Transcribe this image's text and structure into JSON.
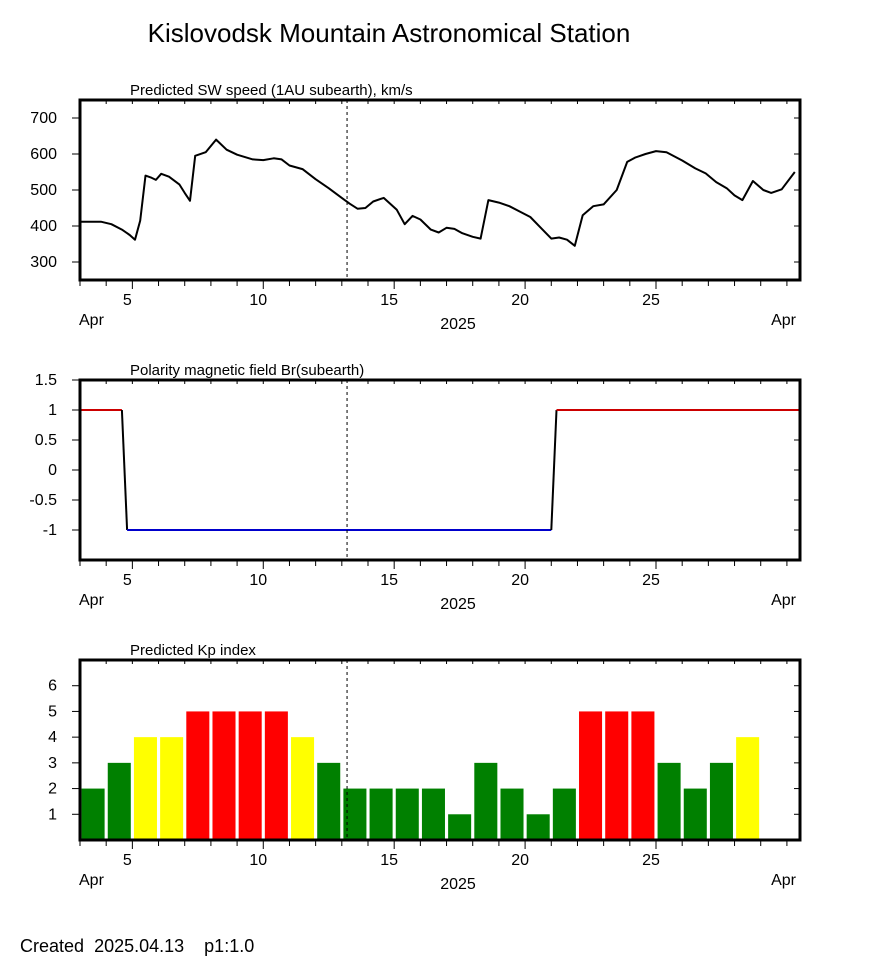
{
  "page_title": "Kislovodsk Mountain Astronomical Station",
  "footer": {
    "created_label": "Created",
    "created_date": "2025.04.13",
    "page_label": "p1:1.0"
  },
  "x_axis": {
    "month_label": "Apr",
    "year_label": "2025",
    "start_day": 3,
    "end_day": 30.5,
    "tick_days": [
      5,
      10,
      15,
      20,
      25
    ],
    "current_day": 13.2
  },
  "chart_data": [
    {
      "id": "sw",
      "type": "line",
      "title": "Predicted SW speed (1AU subearth), km/s",
      "ylim": [
        250,
        750
      ],
      "yticks": [
        300,
        400,
        500,
        600,
        700
      ],
      "grid": false,
      "series": [
        {
          "color": "#000000",
          "x": [
            3,
            3.8,
            4.2,
            4.6,
            4.9,
            5.1,
            5.3,
            5.5,
            5.7,
            5.9,
            6.1,
            6.4,
            6.8,
            7.0,
            7.2,
            7.4,
            7.8,
            8.2,
            8.6,
            9.0,
            9.6,
            10.0,
            10.4,
            10.7,
            11.0,
            11.5,
            12.0,
            12.5,
            13.0,
            13.3,
            13.6,
            13.9,
            14.2,
            14.6,
            15.1,
            15.4,
            15.7,
            16.0,
            16.4,
            16.7,
            17.0,
            17.3,
            17.6,
            18.0,
            18.3,
            18.6,
            19.0,
            19.4,
            19.8,
            20.2,
            20.6,
            21.0,
            21.3,
            21.6,
            21.9,
            22.2,
            22.6,
            23.0,
            23.5,
            23.9,
            24.2,
            24.6,
            25.0,
            25.4,
            26.0,
            26.5,
            26.9,
            27.3,
            27.7,
            28.0,
            28.3,
            28.7,
            29.1,
            29.4,
            29.8,
            30.3
          ],
          "y": [
            412,
            412,
            405,
            390,
            375,
            362,
            415,
            540,
            535,
            528,
            545,
            537,
            515,
            492,
            470,
            595,
            605,
            640,
            612,
            598,
            585,
            583,
            588,
            585,
            568,
            558,
            530,
            505,
            478,
            462,
            448,
            450,
            468,
            478,
            445,
            405,
            428,
            418,
            390,
            382,
            395,
            392,
            380,
            370,
            365,
            472,
            465,
            455,
            440,
            425,
            395,
            365,
            368,
            362,
            345,
            430,
            455,
            460,
            500,
            578,
            590,
            600,
            608,
            605,
            582,
            560,
            546,
            522,
            505,
            485,
            472,
            525,
            500,
            492,
            502,
            550
          ]
        }
      ]
    },
    {
      "id": "br",
      "type": "line",
      "title": "Polarity magnetic field  Br(subearth)",
      "ylim": [
        -1.5,
        1.5
      ],
      "ytick_labels": [
        "1.5",
        "1",
        "0.5",
        "0",
        "-0.5",
        "-1"
      ],
      "yticks": [
        1.5,
        1,
        0.5,
        0,
        -0.5,
        -1
      ],
      "grid": false,
      "series": [
        {
          "color": "#cc0000",
          "x": [
            3,
            4.6
          ],
          "y": [
            1,
            1
          ]
        },
        {
          "color": "#000000",
          "x": [
            4.6,
            4.8
          ],
          "y": [
            1,
            -1
          ]
        },
        {
          "color": "#0000cc",
          "x": [
            4.8,
            21.0
          ],
          "y": [
            -1,
            -1
          ]
        },
        {
          "color": "#000000",
          "x": [
            21.0,
            21.2
          ],
          "y": [
            -1,
            1
          ]
        },
        {
          "color": "#cc0000",
          "x": [
            21.2,
            30.5
          ],
          "y": [
            1,
            1
          ]
        }
      ]
    },
    {
      "id": "kp",
      "type": "bar",
      "title": "Predicted Kp index",
      "ylim": [
        0,
        7
      ],
      "yticks": [
        1,
        2,
        3,
        4,
        5,
        6
      ],
      "grid": false,
      "level_colors": {
        "low": "#008000",
        "medium": "#ffff00",
        "high": "#ff0000"
      },
      "bars_x": [
        3.5,
        4.5,
        5.5,
        6.5,
        7.5,
        8.5,
        9.5,
        10.5,
        11.5,
        12.5,
        13.5,
        14.5,
        15.5,
        16.5,
        17.5,
        18.5,
        19.5,
        20.5,
        21.5,
        22.5,
        23.5,
        24.5,
        25.5,
        26.5,
        27.5,
        28.5
      ],
      "values": [
        2,
        3,
        4,
        4,
        5,
        5,
        5,
        5,
        4,
        3,
        2,
        2,
        2,
        2,
        1,
        3,
        2,
        1,
        2,
        5,
        5,
        5,
        3,
        2,
        3,
        4
      ]
    }
  ]
}
